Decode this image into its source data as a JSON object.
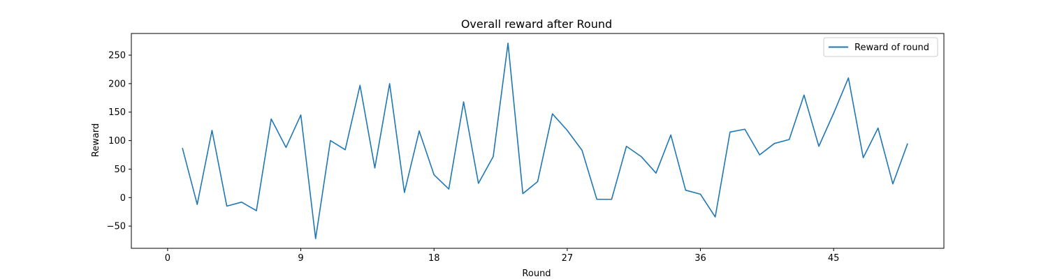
{
  "chart_data": {
    "type": "line",
    "title": "Overall reward after Round",
    "xlabel": "Round",
    "ylabel": "Reward",
    "xlim": [
      -2.45,
      52.45
    ],
    "ylim": [
      -89,
      288
    ],
    "xticks": [
      0,
      9,
      18,
      27,
      36,
      45
    ],
    "yticks": [
      -50,
      0,
      50,
      100,
      150,
      200,
      250
    ],
    "grid": false,
    "legend_position": "upper right",
    "series": [
      {
        "name": "Reward of round",
        "color": "#1f77b4",
        "x": [
          1,
          2,
          3,
          4,
          5,
          6,
          7,
          8,
          9,
          10,
          11,
          12,
          13,
          14,
          15,
          16,
          17,
          18,
          19,
          20,
          21,
          22,
          23,
          24,
          25,
          26,
          27,
          28,
          29,
          30,
          31,
          32,
          33,
          34,
          35,
          36,
          37,
          38,
          39,
          40,
          41,
          42,
          43,
          44,
          45,
          46,
          47,
          48,
          49,
          50
        ],
        "y": [
          87,
          -12,
          118,
          -15,
          -8,
          -23,
          138,
          88,
          145,
          -72,
          100,
          84,
          197,
          52,
          200,
          9,
          117,
          40,
          15,
          168,
          25,
          72,
          271,
          7,
          28,
          147,
          118,
          83,
          -3,
          -3,
          90,
          72,
          43,
          110,
          13,
          6,
          -34,
          115,
          120,
          75,
          95,
          102,
          180,
          90,
          148,
          210,
          70,
          122,
          24,
          95
        ]
      }
    ]
  }
}
